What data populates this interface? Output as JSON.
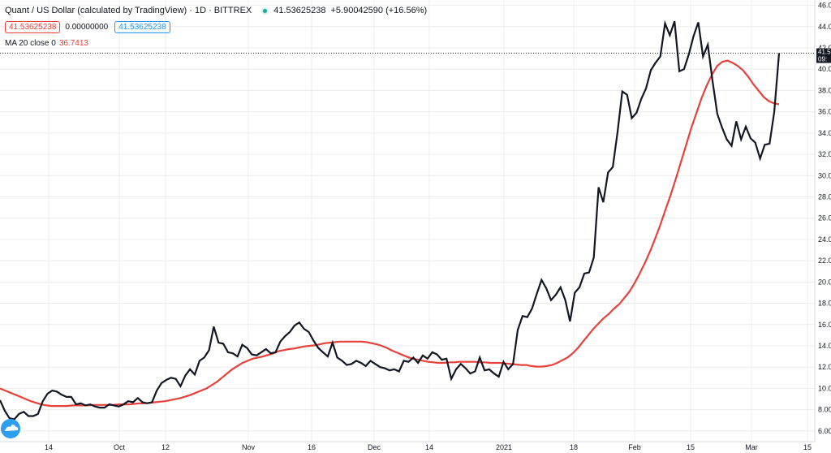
{
  "legend": {
    "title": "Quant / US Dollar (calculated by TradingView) · 1D · BITTREX",
    "last": "41.53625238",
    "change": "+5.90042590 (+16.56%)",
    "pill_red": "41.53625238",
    "pill_plain": "0.00000000",
    "pill_blue": "41.53625238",
    "ma_label": "MA 20 close 0",
    "ma_value": "36.7413"
  },
  "price_tag": {
    "top": "41.5",
    "bottom": "09:"
  },
  "colors": {
    "price": "#131722",
    "ma": "#e8413b",
    "red": "#e8413b",
    "blue": "#2196f3",
    "grid": "#ececec"
  },
  "chart_data": {
    "type": "line",
    "ylim": [
      5,
      46.5
    ],
    "y_ticks": [
      "6.00",
      "8.00",
      "10.00",
      "12.00",
      "14.00",
      "16.00",
      "18.00",
      "20.00",
      "22.00",
      "24.00",
      "26.00",
      "28.00",
      "30.00",
      "32.00",
      "34.00",
      "36.00",
      "38.00",
      "40.00",
      "42.00",
      "44.00",
      "46.0"
    ],
    "x_ticks": [
      "14",
      "Oct",
      "12",
      "Nov",
      "16",
      "Dec",
      "14",
      "2021",
      "18",
      "Feb",
      "15",
      "Mar",
      "15"
    ],
    "series": [
      {
        "name": "Quant / US Dollar",
        "values": [
          8.9,
          7.9,
          7.2,
          7.1,
          7.6,
          7.8,
          7.4,
          7.4,
          7.6,
          8.8,
          9.5,
          9.8,
          9.7,
          9.4,
          9.2,
          9.2,
          8.5,
          8.6,
          8.4,
          8.5,
          8.3,
          8.2,
          8.2,
          8.5,
          8.4,
          8.3,
          8.5,
          8.8,
          8.7,
          9.1,
          8.7,
          8.6,
          8.7,
          9.8,
          10.5,
          10.8,
          11.0,
          10.9,
          10.2,
          11.2,
          11.8,
          11.3,
          12.6,
          12.9,
          13.6,
          15.8,
          14.3,
          14.2,
          13.4,
          13.3,
          13.0,
          14.1,
          13.8,
          13.2,
          13.1,
          13.4,
          13.7,
          13.3,
          13.4,
          14.4,
          14.9,
          15.3,
          15.9,
          16.2,
          15.6,
          15.3,
          14.5,
          13.8,
          13.4,
          13.0,
          14.3,
          12.9,
          12.6,
          12.2,
          12.3,
          12.6,
          12.4,
          12.1,
          12.6,
          12.3,
          12.0,
          11.9,
          11.7,
          11.8,
          11.6,
          12.6,
          12.5,
          12.9,
          12.4,
          13.1,
          12.8,
          13.4,
          13.2,
          12.7,
          12.8,
          10.9,
          11.8,
          12.3,
          11.9,
          11.4,
          11.6,
          12.9,
          11.7,
          11.8,
          11.4,
          11.1,
          12.5,
          11.8,
          12.3,
          15.5,
          16.8,
          16.7,
          17.5,
          18.9,
          20.2,
          19.4,
          18.3,
          18.8,
          19.5,
          18.3,
          16.3,
          19.0,
          19.5,
          20.8,
          20.9,
          22.3,
          28.9,
          27.5,
          30.3,
          30.8,
          34.1,
          37.9,
          37.6,
          35.4,
          35.9,
          37.2,
          38.2,
          39.9,
          40.6,
          41.2,
          44.3,
          43.2,
          44.5,
          39.8,
          40.0,
          41.4,
          43.1,
          44.4,
          41.2,
          42.3,
          38.9,
          35.8,
          34.5,
          33.4,
          32.8,
          35.1,
          33.4,
          34.6,
          33.5,
          33.1,
          31.6,
          32.9,
          33.0,
          36.0,
          41.5
        ]
      },
      {
        "name": "MA 20 close 0",
        "values": [
          10.0,
          9.8,
          9.6,
          9.4,
          9.2,
          9.0,
          8.8,
          8.65,
          8.5,
          8.4,
          8.35,
          8.35,
          8.35,
          8.35,
          8.4,
          8.4,
          8.4,
          8.4,
          8.45,
          8.45,
          8.45,
          8.45,
          8.45,
          8.5,
          8.5,
          8.5,
          8.55,
          8.6,
          8.6,
          8.65,
          8.7,
          8.75,
          8.8,
          8.9,
          9.0,
          9.1,
          9.25,
          9.4,
          9.6,
          9.8,
          10.0,
          10.3,
          10.6,
          11.0,
          11.4,
          11.8,
          12.1,
          12.4,
          12.6,
          12.8,
          12.9,
          13.0,
          13.15,
          13.3,
          13.5,
          13.6,
          13.7,
          13.75,
          13.85,
          13.95,
          14.0,
          14.05,
          14.15,
          14.25,
          14.3,
          14.35,
          14.4,
          14.4,
          14.4,
          14.4,
          14.4,
          14.35,
          14.25,
          14.15,
          14.0,
          13.8,
          13.55,
          13.35,
          13.15,
          12.95,
          12.8,
          12.7,
          12.6,
          12.5,
          12.45,
          12.4,
          12.4,
          12.45,
          12.45,
          12.5,
          12.5,
          12.5,
          12.5,
          12.45,
          12.45,
          12.4,
          12.4,
          12.4,
          12.35,
          12.3,
          12.25,
          12.2,
          12.2,
          12.1,
          12.05,
          12.05,
          12.1,
          12.2,
          12.4,
          12.65,
          12.9,
          13.3,
          13.8,
          14.4,
          15.0,
          15.6,
          16.1,
          16.6,
          17.0,
          17.5,
          17.9,
          18.5,
          19.1,
          19.9,
          20.8,
          21.8,
          22.9,
          24.1,
          25.4,
          26.8,
          28.2,
          29.7,
          31.3,
          32.9,
          34.5,
          35.9,
          37.3,
          38.5,
          39.5,
          40.3,
          40.7,
          40.8,
          40.6,
          40.3,
          39.9,
          39.3,
          38.6,
          38.0,
          37.4,
          37.0,
          36.8,
          36.7
        ]
      }
    ]
  }
}
